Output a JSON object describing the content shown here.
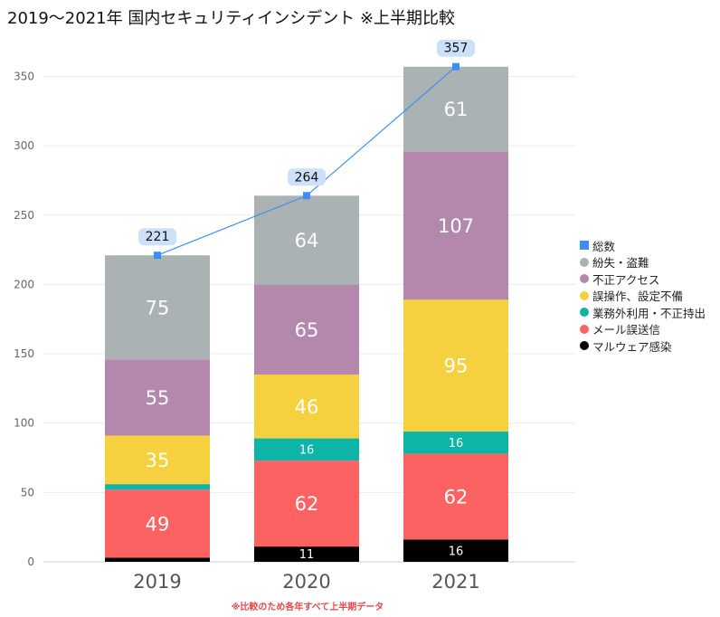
{
  "title": "2019〜2021年 国内セキュリティインシデント ※上半期比較",
  "footnote": "※比較のため各年すべて上半期データ",
  "chart_data": {
    "type": "bar",
    "stacked": true,
    "categories": [
      "2019",
      "2020",
      "2021"
    ],
    "ylim": [
      0,
      370
    ],
    "yticks": [
      0,
      50,
      100,
      150,
      200,
      250,
      300,
      350
    ],
    "series": [
      {
        "name": "マルウェア感染",
        "color": "#000000",
        "values": [
          3,
          11,
          16
        ],
        "labels": [
          "",
          "11",
          "16"
        ],
        "label_size": 13,
        "label_color": "#ffffff"
      },
      {
        "name": "メール誤送信",
        "color": "#fd6262",
        "values": [
          49,
          62,
          62
        ],
        "labels": [
          "49",
          "62",
          "62"
        ],
        "label_size": 21,
        "label_color": "#ffffff"
      },
      {
        "name": "業務外利用・不正持出",
        "color": "#0cb5a7",
        "values": [
          4,
          16,
          16
        ],
        "labels": [
          "",
          "16",
          "16"
        ],
        "label_size": 13,
        "label_color": "#ffffff"
      },
      {
        "name": "誤操作、設定不備",
        "color": "#f5d03f",
        "values": [
          35,
          46,
          95
        ],
        "labels": [
          "35",
          "46",
          "95"
        ],
        "label_size": 21,
        "label_color": "#ffffff"
      },
      {
        "name": "不正アクセス",
        "color": "#b487ad",
        "values": [
          55,
          65,
          107
        ],
        "labels": [
          "55",
          "65",
          "107"
        ],
        "label_size": 21,
        "label_color": "#ffffff"
      },
      {
        "name": "紛失・盗難",
        "color": "#abb2b4",
        "values": [
          75,
          64,
          61
        ],
        "labels": [
          "75",
          "64",
          "61"
        ],
        "label_size": 21,
        "label_color": "#ffffff"
      }
    ],
    "total_line": {
      "name": "総数",
      "color": "#3d8ef0",
      "values": [
        221,
        264,
        357
      ]
    },
    "legend": [
      {
        "name": "総数",
        "color": "#3d8ef0",
        "shape": "square"
      },
      {
        "name": "紛失・盗難",
        "color": "#abb2b4",
        "shape": "circle"
      },
      {
        "name": "不正アクセス",
        "color": "#b487ad",
        "shape": "circle"
      },
      {
        "name": "誤操作、設定不備",
        "color": "#f5d03f",
        "shape": "circle"
      },
      {
        "name": "業務外利用・不正持出",
        "color": "#0cb5a7",
        "shape": "circle"
      },
      {
        "name": "メール誤送信",
        "color": "#fd6262",
        "shape": "circle"
      },
      {
        "name": "マルウェア感染",
        "color": "#000000",
        "shape": "circle"
      }
    ],
    "legend_position": "right",
    "grid": true
  }
}
